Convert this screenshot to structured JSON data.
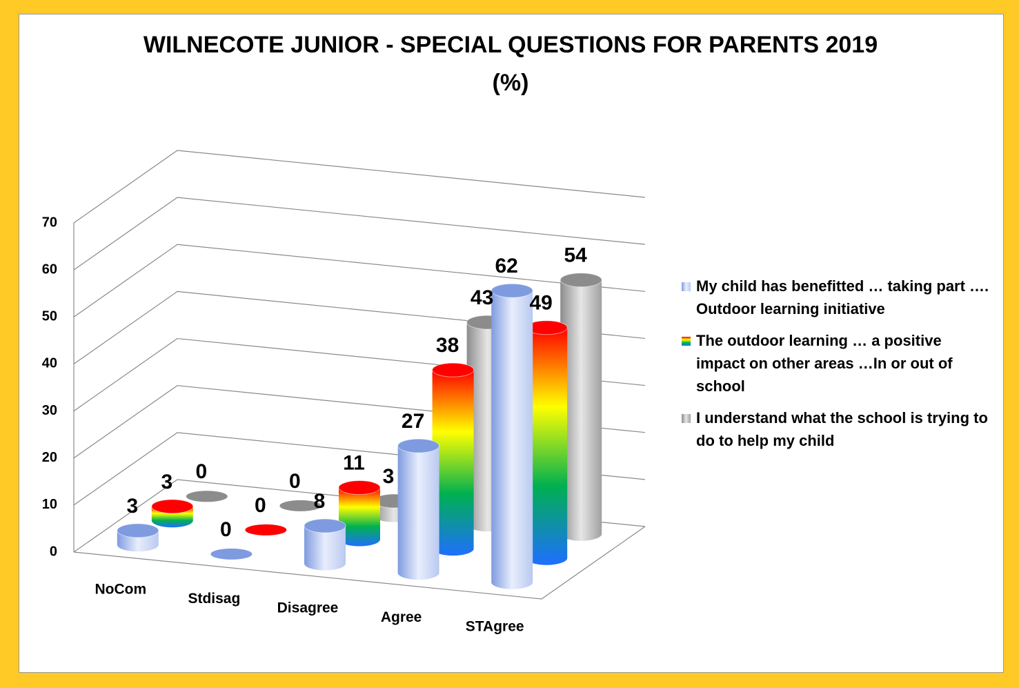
{
  "chart_data": {
    "type": "cylinder3d",
    "title": "WILNECOTE JUNIOR - SPECIAL QUESTIONS FOR PARENTS 2019",
    "subtitle": "(%)",
    "categories": [
      "NoCom",
      "Stdisag",
      "Disagree",
      "Agree",
      "STAgree"
    ],
    "series": [
      {
        "name": "My child has benefitted … taking part …. Outdoor learning initiative",
        "color": [
          "#7f9be0",
          "#e8eefc",
          "#b9c9f0"
        ],
        "values": [
          3,
          0,
          8,
          27,
          62
        ]
      },
      {
        "name": "The outdoor learning … a positive impact  on other areas …In or out of school",
        "color": [
          "#ff0000",
          "#ffff00",
          "#00b050",
          "#1f6fff"
        ],
        "values": [
          3,
          0,
          11,
          38,
          49
        ]
      },
      {
        "name": "I understand what the school is trying to do to help my child",
        "color": [
          "#8c8c8c",
          "#e6e6e6",
          "#a0a0a0"
        ],
        "values": [
          0,
          0,
          3,
          43,
          54
        ]
      }
    ],
    "ylim": [
      0,
      70
    ],
    "yticks": [
      0,
      10,
      20,
      30,
      40,
      50,
      60,
      70
    ],
    "grid": true,
    "legend": "right"
  }
}
